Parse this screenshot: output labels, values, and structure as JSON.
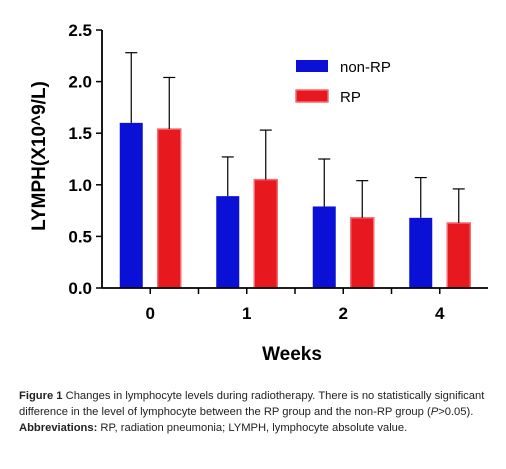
{
  "chart_data": {
    "type": "bar",
    "categories": [
      "0",
      "1",
      "2",
      "4"
    ],
    "series": [
      {
        "name": "non-RP",
        "values": [
          1.6,
          0.89,
          0.79,
          0.68
        ],
        "errors": [
          0.68,
          0.38,
          0.46,
          0.39
        ],
        "color": "#0a10d6"
      },
      {
        "name": "RP",
        "values": [
          1.54,
          1.05,
          0.68,
          0.63
        ],
        "errors": [
          0.5,
          0.48,
          0.36,
          0.33
        ],
        "color": "#e8181f"
      }
    ],
    "xlabel": "Weeks",
    "ylabel": "LYMPH(X10^9/L)",
    "ylim": [
      0,
      2.5
    ],
    "yticks": [
      "0.0",
      "0.5",
      "1.0",
      "1.5",
      "2.0",
      "2.5"
    ],
    "grid": false,
    "legend": "top-right"
  },
  "caption": {
    "figure_label": "Figure 1",
    "figure_text": " Changes in lymphocyte levels during radiotherapy. There is no statistically significant difference in the level of lymphocyte between the RP group and the non-RP group (",
    "p_symbol": "P",
    "p_text": ">0.05).",
    "abbrev_label": "Abbreviations:",
    "abbrev_text": " RP, radiation pneumonia; LYMPH, lymphocyte absolute value."
  }
}
